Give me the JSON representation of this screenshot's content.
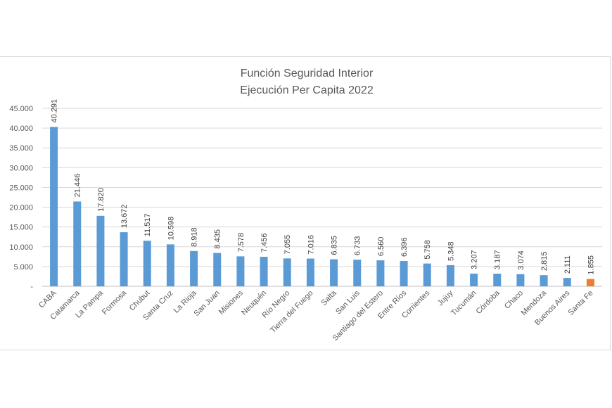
{
  "chart_data": {
    "type": "bar",
    "title": [
      "Función Seguridad Interior",
      "Ejecución Per Capita 2022"
    ],
    "xlabel": "",
    "ylabel": "",
    "ylim": [
      0,
      45000
    ],
    "yticks": [
      0,
      5000,
      10000,
      15000,
      20000,
      25000,
      30000,
      35000,
      40000,
      45000
    ],
    "ytick_labels": [
      "-",
      "5.000",
      "10.000",
      "15.000",
      "20.000",
      "25.000",
      "30.000",
      "35.000",
      "40.000",
      "45.000"
    ],
    "grid": true,
    "legend": "none",
    "categories": [
      "CABA",
      "Catamarca",
      "La Pampa",
      "Formosa",
      "Chubut",
      "Santa Cruz",
      "La Rioja",
      "San Juan",
      "Misiones",
      "Neuquén",
      "Río Negro",
      "Tierra del Fuego",
      "Salta",
      "San Luis",
      "Santiago del Estero",
      "Entre Ríos",
      "Corrientes",
      "Jujuy",
      "Tucumán",
      "Córdoba",
      "Chaco",
      "Mendoza",
      "Buenos Aires",
      "Santa Fe"
    ],
    "values": [
      40291,
      21446,
      17820,
      13672,
      11517,
      10598,
      8918,
      8435,
      7578,
      7456,
      7055,
      7016,
      6835,
      6733,
      6560,
      6396,
      5758,
      5348,
      3207,
      3187,
      3074,
      2815,
      2111,
      1855
    ],
    "data_labels": [
      "40.291",
      "21.446",
      "17.820",
      "13.672",
      "11.517",
      "10.598",
      "8.918",
      "8.435",
      "7.578",
      "7.456",
      "7.055",
      "7.016",
      "6.835",
      "6.733",
      "6.560",
      "6.396",
      "5.758",
      "5.348",
      "3.207",
      "3.187",
      "3.074",
      "2.815",
      "2.111",
      "1.855"
    ],
    "colors": {
      "default": "#5B9BD5",
      "highlight": "#ED7D31",
      "grid": "#d9d9d9",
      "axis": "#bfbfbf"
    },
    "highlight_category": "Santa Fe"
  }
}
